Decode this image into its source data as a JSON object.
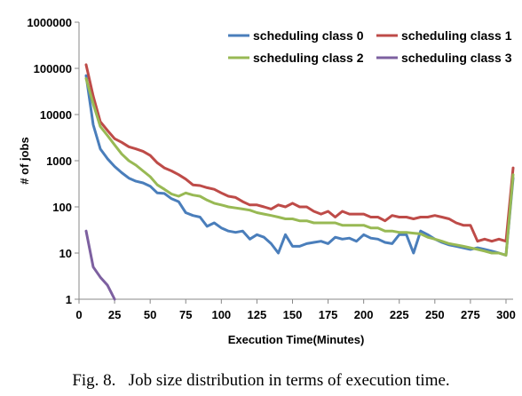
{
  "chart_data": {
    "type": "line",
    "xlabel": "Execution Time(Minutes)",
    "ylabel": "# of jobs",
    "xlim": [
      0,
      305
    ],
    "ylim": [
      1,
      1000000
    ],
    "yscale": "log",
    "x_ticks": [
      0,
      25,
      50,
      75,
      100,
      125,
      150,
      175,
      200,
      225,
      250,
      275,
      300
    ],
    "y_ticks": [
      1,
      10,
      100,
      1000,
      10000,
      100000,
      1000000
    ],
    "y_tick_labels": [
      "1",
      "10",
      "100",
      "1000",
      "10000",
      "100000",
      "1000000"
    ],
    "grid": false,
    "legend": "top-right",
    "series": [
      {
        "name": "scheduling class 0",
        "color": "#4a7ebb",
        "x": [
          5,
          10,
          15,
          20,
          25,
          30,
          35,
          40,
          45,
          50,
          55,
          60,
          65,
          70,
          75,
          80,
          85,
          90,
          95,
          100,
          105,
          110,
          115,
          120,
          125,
          130,
          135,
          140,
          145,
          150,
          155,
          160,
          165,
          170,
          175,
          180,
          185,
          190,
          195,
          200,
          205,
          210,
          215,
          220,
          225,
          230,
          235,
          240,
          245,
          250,
          255,
          260,
          265,
          270,
          275,
          280,
          285,
          290,
          295,
          300,
          305
        ],
        "values": [
          70000,
          6000,
          1800,
          1100,
          750,
          550,
          420,
          360,
          330,
          280,
          200,
          195,
          150,
          130,
          75,
          65,
          60,
          38,
          45,
          35,
          30,
          28,
          30,
          20,
          25,
          22,
          16,
          10,
          25,
          14,
          14,
          16,
          17,
          18,
          16,
          22,
          20,
          21,
          18,
          25,
          21,
          20,
          17,
          16,
          25,
          25,
          10,
          30,
          25,
          20,
          17,
          15,
          14,
          13,
          12,
          13,
          12,
          11,
          10,
          9,
          420
        ]
      },
      {
        "name": "scheduling class 1",
        "color": "#be4b48",
        "x": [
          5,
          10,
          15,
          20,
          25,
          30,
          35,
          40,
          45,
          50,
          55,
          60,
          65,
          70,
          75,
          80,
          85,
          90,
          95,
          100,
          105,
          110,
          115,
          120,
          125,
          130,
          135,
          140,
          145,
          150,
          155,
          160,
          165,
          170,
          175,
          180,
          185,
          190,
          195,
          200,
          205,
          210,
          215,
          220,
          225,
          230,
          235,
          240,
          245,
          250,
          255,
          260,
          265,
          270,
          275,
          280,
          285,
          290,
          295,
          300,
          305
        ],
        "values": [
          120000,
          25000,
          7000,
          4500,
          3000,
          2500,
          2000,
          1800,
          1600,
          1300,
          900,
          700,
          600,
          500,
          400,
          300,
          290,
          260,
          240,
          200,
          170,
          160,
          130,
          110,
          110,
          100,
          90,
          110,
          100,
          120,
          100,
          100,
          80,
          70,
          80,
          60,
          80,
          70,
          70,
          70,
          60,
          60,
          50,
          65,
          60,
          60,
          55,
          60,
          60,
          65,
          60,
          55,
          45,
          40,
          40,
          18,
          20,
          18,
          20,
          18,
          700
        ]
      },
      {
        "name": "scheduling class 2",
        "color": "#98b954",
        "x": [
          5,
          10,
          15,
          20,
          25,
          30,
          35,
          40,
          45,
          50,
          55,
          60,
          65,
          70,
          75,
          80,
          85,
          90,
          95,
          100,
          105,
          110,
          115,
          120,
          125,
          130,
          135,
          140,
          145,
          150,
          155,
          160,
          165,
          170,
          175,
          180,
          185,
          190,
          195,
          200,
          205,
          210,
          215,
          220,
          225,
          230,
          235,
          240,
          245,
          250,
          255,
          260,
          265,
          270,
          275,
          280,
          285,
          290,
          295,
          300,
          305
        ],
        "values": [
          60000,
          17000,
          5500,
          3500,
          2200,
          1400,
          1000,
          800,
          600,
          450,
          300,
          240,
          190,
          170,
          200,
          180,
          170,
          140,
          120,
          110,
          100,
          95,
          90,
          85,
          75,
          70,
          65,
          60,
          55,
          55,
          50,
          50,
          45,
          45,
          45,
          45,
          40,
          40,
          40,
          40,
          35,
          35,
          30,
          30,
          28,
          28,
          27,
          26,
          22,
          20,
          18,
          16,
          15,
          14,
          13,
          12,
          11,
          10,
          10,
          9,
          500
        ]
      },
      {
        "name": "scheduling class 3",
        "color": "#7d60a0",
        "x": [
          5,
          10,
          15,
          20,
          25
        ],
        "values": [
          30,
          5,
          3,
          2,
          1
        ]
      }
    ]
  },
  "caption": "Fig. 8.   Job size distribution in terms of execution time."
}
